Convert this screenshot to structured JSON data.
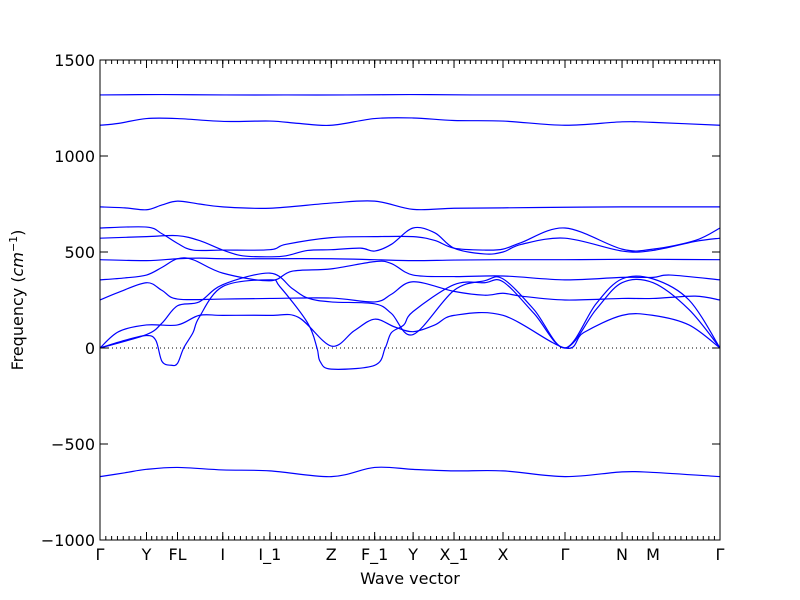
{
  "chart_data": {
    "type": "line",
    "title": "",
    "xlabel": "Wave vector",
    "ylabel_text": "Frequency (",
    "ylabel_unit_base": "cm",
    "ylabel_unit_exp": "−1",
    "ylabel_close": ")",
    "ylim": [
      -1000,
      1500
    ],
    "yticks": [
      {
        "value": -1000,
        "label": "−1000"
      },
      {
        "value": -500,
        "label": "−500"
      },
      {
        "value": 0,
        "label": "0"
      },
      {
        "value": 500,
        "label": "500"
      },
      {
        "value": 1000,
        "label": "1000"
      },
      {
        "value": 1500,
        "label": "1500"
      }
    ],
    "xlim": [
      0,
      1
    ],
    "xticks": [
      {
        "pos": 0.0,
        "label": "Γ"
      },
      {
        "pos": 0.075,
        "label": "Y"
      },
      {
        "pos": 0.125,
        "label": "FL"
      },
      {
        "pos": 0.198,
        "label": "I"
      },
      {
        "pos": 0.274,
        "label": "I_1"
      },
      {
        "pos": 0.373,
        "label": "Z"
      },
      {
        "pos": 0.443,
        "label": "F_1"
      },
      {
        "pos": 0.505,
        "label": "Y"
      },
      {
        "pos": 0.571,
        "label": "X_1"
      },
      {
        "pos": 0.65,
        "label": "X"
      },
      {
        "pos": 0.75,
        "label": "Γ"
      },
      {
        "pos": 0.842,
        "label": "N"
      },
      {
        "pos": 0.892,
        "label": "M"
      },
      {
        "pos": 1.0,
        "label": "Γ"
      }
    ],
    "zero_line": 0,
    "series_color": "#0000ff",
    "series": [
      {
        "points": [
          [
            0,
            1318
          ],
          [
            0.1,
            1320
          ],
          [
            0.2,
            1318
          ],
          [
            0.3,
            1318
          ],
          [
            0.4,
            1318
          ],
          [
            0.5,
            1320
          ],
          [
            0.6,
            1318
          ],
          [
            0.75,
            1318
          ],
          [
            0.9,
            1318
          ],
          [
            1,
            1318
          ]
        ]
      },
      {
        "points": [
          [
            0,
            1160
          ],
          [
            0.03,
            1170
          ],
          [
            0.075,
            1195
          ],
          [
            0.125,
            1195
          ],
          [
            0.2,
            1180
          ],
          [
            0.274,
            1182
          ],
          [
            0.32,
            1170
          ],
          [
            0.373,
            1160
          ],
          [
            0.443,
            1195
          ],
          [
            0.505,
            1198
          ],
          [
            0.571,
            1185
          ],
          [
            0.65,
            1182
          ],
          [
            0.75,
            1160
          ],
          [
            0.842,
            1178
          ],
          [
            0.892,
            1175
          ],
          [
            1,
            1160
          ]
        ]
      },
      {
        "points": [
          [
            0,
            735
          ],
          [
            0.04,
            730
          ],
          [
            0.075,
            720
          ],
          [
            0.1,
            745
          ],
          [
            0.125,
            765
          ],
          [
            0.16,
            750
          ],
          [
            0.198,
            735
          ],
          [
            0.274,
            728
          ],
          [
            0.373,
            755
          ],
          [
            0.443,
            765
          ],
          [
            0.505,
            722
          ],
          [
            0.571,
            728
          ],
          [
            0.65,
            730
          ],
          [
            0.75,
            733
          ],
          [
            0.842,
            735
          ],
          [
            0.892,
            735
          ],
          [
            1,
            735
          ]
        ]
      },
      {
        "points": [
          [
            0,
            625
          ],
          [
            0.075,
            630
          ],
          [
            0.1,
            595
          ],
          [
            0.125,
            545
          ],
          [
            0.15,
            510
          ],
          [
            0.198,
            510
          ],
          [
            0.274,
            512
          ],
          [
            0.3,
            540
          ],
          [
            0.373,
            575
          ],
          [
            0.443,
            580
          ],
          [
            0.505,
            580
          ],
          [
            0.54,
            560
          ],
          [
            0.571,
            520
          ],
          [
            0.62,
            510
          ],
          [
            0.65,
            515
          ],
          [
            0.68,
            550
          ],
          [
            0.75,
            625
          ],
          [
            0.842,
            515
          ],
          [
            0.892,
            515
          ],
          [
            0.96,
            560
          ],
          [
            1,
            625
          ]
        ]
      },
      {
        "points": [
          [
            0,
            572
          ],
          [
            0.075,
            580
          ],
          [
            0.125,
            585
          ],
          [
            0.16,
            560
          ],
          [
            0.198,
            510
          ],
          [
            0.23,
            480
          ],
          [
            0.274,
            475
          ],
          [
            0.3,
            480
          ],
          [
            0.335,
            508
          ],
          [
            0.373,
            512
          ],
          [
            0.42,
            520
          ],
          [
            0.443,
            505
          ],
          [
            0.47,
            540
          ],
          [
            0.505,
            625
          ],
          [
            0.54,
            600
          ],
          [
            0.571,
            520
          ],
          [
            0.62,
            490
          ],
          [
            0.65,
            500
          ],
          [
            0.68,
            540
          ],
          [
            0.75,
            572
          ],
          [
            0.842,
            505
          ],
          [
            0.892,
            508
          ],
          [
            0.96,
            555
          ],
          [
            1,
            572
          ]
        ]
      },
      {
        "points": [
          [
            0,
            460
          ],
          [
            0.075,
            455
          ],
          [
            0.125,
            465
          ],
          [
            0.16,
            468
          ],
          [
            0.198,
            465
          ],
          [
            0.274,
            465
          ],
          [
            0.373,
            465
          ],
          [
            0.443,
            460
          ],
          [
            0.505,
            455
          ],
          [
            0.571,
            458
          ],
          [
            0.65,
            460
          ],
          [
            0.75,
            460
          ],
          [
            0.842,
            462
          ],
          [
            0.892,
            462
          ],
          [
            1,
            460
          ]
        ]
      },
      {
        "points": [
          [
            0,
            355
          ],
          [
            0.04,
            365
          ],
          [
            0.075,
            380
          ],
          [
            0.1,
            420
          ],
          [
            0.125,
            465
          ],
          [
            0.15,
            460
          ],
          [
            0.198,
            390
          ],
          [
            0.274,
            350
          ],
          [
            0.31,
            400
          ],
          [
            0.373,
            412
          ],
          [
            0.443,
            450
          ],
          [
            0.47,
            440
          ],
          [
            0.505,
            380
          ],
          [
            0.571,
            372
          ],
          [
            0.65,
            375
          ],
          [
            0.75,
            355
          ],
          [
            0.842,
            368
          ],
          [
            0.892,
            368
          ],
          [
            0.92,
            380
          ],
          [
            1,
            355
          ]
        ]
      },
      {
        "points": [
          [
            0,
            250
          ],
          [
            0.03,
            290
          ],
          [
            0.075,
            340
          ],
          [
            0.1,
            300
          ],
          [
            0.125,
            255
          ],
          [
            0.198,
            255
          ],
          [
            0.274,
            258
          ],
          [
            0.373,
            260
          ],
          [
            0.443,
            240
          ],
          [
            0.47,
            280
          ],
          [
            0.505,
            345
          ],
          [
            0.571,
            295
          ],
          [
            0.62,
            275
          ],
          [
            0.65,
            285
          ],
          [
            0.68,
            270
          ],
          [
            0.75,
            250
          ],
          [
            0.842,
            258
          ],
          [
            0.892,
            258
          ],
          [
            0.96,
            270
          ],
          [
            1,
            250
          ]
        ]
      },
      {
        "points": [
          [
            0,
            0
          ],
          [
            0.03,
            85
          ],
          [
            0.075,
            120
          ],
          [
            0.125,
            120
          ],
          [
            0.16,
            170
          ],
          [
            0.198,
            170
          ],
          [
            0.274,
            170
          ],
          [
            0.32,
            160
          ],
          [
            0.373,
            10
          ],
          [
            0.41,
            90
          ],
          [
            0.443,
            150
          ],
          [
            0.475,
            110
          ],
          [
            0.505,
            85
          ],
          [
            0.54,
            120
          ],
          [
            0.571,
            170
          ],
          [
            0.65,
            170
          ],
          [
            0.75,
            0
          ],
          [
            0.78,
            80
          ],
          [
            0.842,
            170
          ],
          [
            0.892,
            170
          ],
          [
            0.95,
            120
          ],
          [
            1,
            0
          ]
        ]
      },
      {
        "points": [
          [
            0,
            0
          ],
          [
            0.04,
            40
          ],
          [
            0.075,
            65
          ],
          [
            0.09,
            40
          ],
          [
            0.1,
            -70
          ],
          [
            0.115,
            -90
          ],
          [
            0.125,
            -80
          ],
          [
            0.135,
            0
          ],
          [
            0.15,
            80
          ],
          [
            0.16,
            160
          ],
          [
            0.198,
            320
          ],
          [
            0.274,
            355
          ],
          [
            0.29,
            320
          ],
          [
            0.335,
            130
          ],
          [
            0.35,
            0
          ],
          [
            0.355,
            -70
          ],
          [
            0.373,
            -110
          ],
          [
            0.443,
            -90
          ],
          [
            0.46,
            0
          ],
          [
            0.47,
            80
          ],
          [
            0.49,
            120
          ],
          [
            0.505,
            190
          ],
          [
            0.571,
            330
          ],
          [
            0.62,
            340
          ],
          [
            0.65,
            345
          ],
          [
            0.7,
            180
          ],
          [
            0.75,
            0
          ],
          [
            0.8,
            200
          ],
          [
            0.842,
            340
          ],
          [
            0.892,
            340
          ],
          [
            0.95,
            200
          ],
          [
            1,
            0
          ]
        ]
      },
      {
        "points": [
          [
            0,
            0
          ],
          [
            0.075,
            70
          ],
          [
            0.1,
            130
          ],
          [
            0.125,
            220
          ],
          [
            0.16,
            240
          ],
          [
            0.198,
            330
          ],
          [
            0.274,
            390
          ],
          [
            0.31,
            310
          ],
          [
            0.335,
            260
          ],
          [
            0.373,
            240
          ],
          [
            0.443,
            230
          ],
          [
            0.47,
            180
          ],
          [
            0.505,
            70
          ],
          [
            0.571,
            300
          ],
          [
            0.62,
            350
          ],
          [
            0.65,
            360
          ],
          [
            0.7,
            200
          ],
          [
            0.75,
            0
          ],
          [
            0.8,
            230
          ],
          [
            0.842,
            360
          ],
          [
            0.892,
            360
          ],
          [
            0.95,
            250
          ],
          [
            1,
            0
          ]
        ]
      },
      {
        "points": [
          [
            0,
            -670
          ],
          [
            0.04,
            -650
          ],
          [
            0.075,
            -632
          ],
          [
            0.125,
            -622
          ],
          [
            0.198,
            -635
          ],
          [
            0.274,
            -640
          ],
          [
            0.373,
            -670
          ],
          [
            0.443,
            -622
          ],
          [
            0.505,
            -632
          ],
          [
            0.571,
            -640
          ],
          [
            0.65,
            -640
          ],
          [
            0.75,
            -670
          ],
          [
            0.842,
            -645
          ],
          [
            0.892,
            -648
          ],
          [
            1,
            -670
          ]
        ]
      }
    ]
  }
}
